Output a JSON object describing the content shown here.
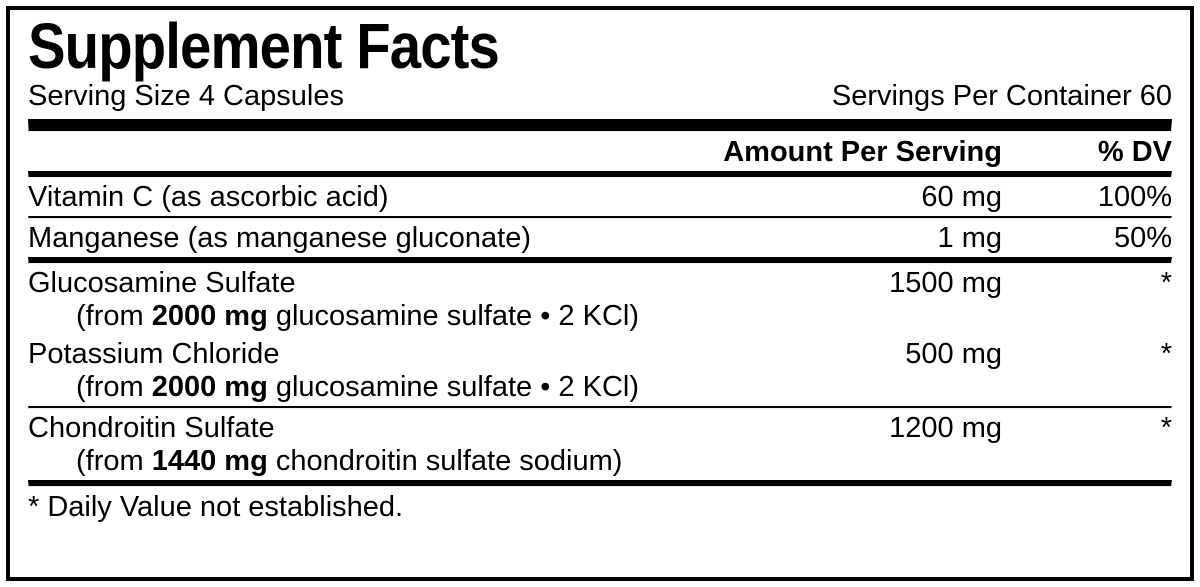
{
  "title": "Supplement Facts",
  "serving_size_label": "Serving Size 4 Capsules",
  "servings_per_container_label": "Servings Per Container 60",
  "header_amount": "Amount Per Serving",
  "header_dv": "% DV",
  "rows": {
    "vitc": {
      "name": "Vitamin C (as ascorbic acid)",
      "amount": "60 mg",
      "dv": "100%"
    },
    "mn": {
      "name": "Manganese (as manganese gluconate)",
      "amount": "1 mg",
      "dv": "50%"
    },
    "gluco": {
      "name": "Glucosamine Sulfate",
      "amount": "1500 mg",
      "dv": "*"
    },
    "kcl": {
      "name": "Potassium Chloride",
      "amount": "500 mg",
      "dv": "*"
    },
    "chond": {
      "name": "Chondroitin Sulfate",
      "amount": "1200 mg",
      "dv": "*"
    }
  },
  "subs": {
    "gluco_pre": "(from ",
    "gluco_bold": "2000 mg",
    "gluco_post": " glucosamine sulfate • 2 KCl)",
    "kcl_pre": "(from ",
    "kcl_bold": "2000 mg",
    "kcl_post": " glucosamine sulfate • 2 KCl)",
    "chond_pre": "(from ",
    "chond_bold": "1440 mg",
    "chond_post": " chondroitin sulfate sodium)"
  },
  "footnote": "* Daily Value not established."
}
